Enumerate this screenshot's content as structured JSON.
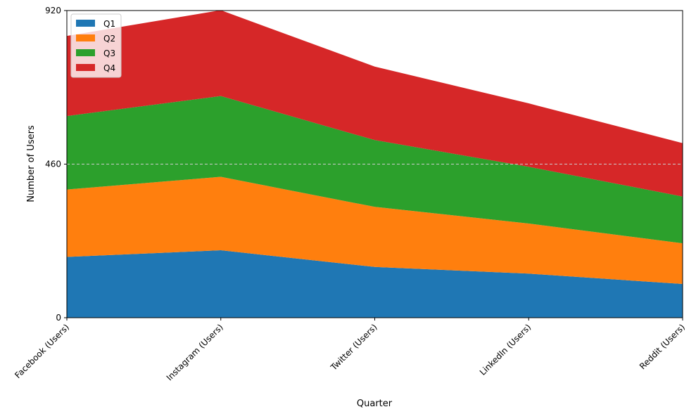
{
  "chart_data": {
    "type": "area",
    "stacked": true,
    "categories": [
      "Facebook (Users)",
      "Instagram (Users)",
      "Twitter (Users)",
      "LinkedIn (Users)",
      "Reddit (Users)"
    ],
    "series": [
      {
        "name": "Q1",
        "color": "#1f77b4",
        "values": [
          182,
          202,
          152,
          132,
          101
        ]
      },
      {
        "name": "Q2",
        "color": "#ff7f0e",
        "values": [
          202,
          220,
          180,
          150,
          122
        ]
      },
      {
        "name": "Q3",
        "color": "#2ca02c",
        "values": [
          220,
          242,
          200,
          170,
          140
        ]
      },
      {
        "name": "Q4",
        "color": "#d62728",
        "values": [
          240,
          257,
          220,
          190,
          160
        ]
      }
    ],
    "xlabel": "Quarter",
    "ylabel": "Number of Users",
    "ylim": [
      0,
      920
    ],
    "yticks": [
      0,
      460,
      920
    ],
    "grid": "horizontal dashed",
    "legend": "top-left"
  }
}
